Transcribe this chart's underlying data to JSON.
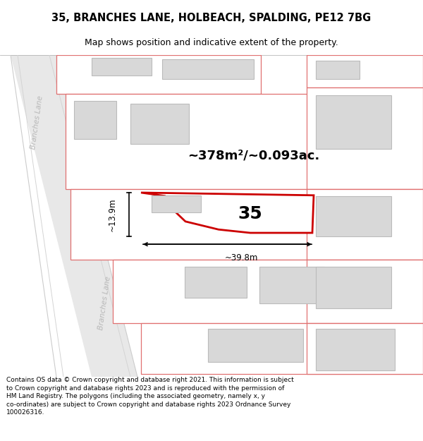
{
  "title": "35, BRANCHES LANE, HOLBEACH, SPALDING, PE12 7BG",
  "subtitle": "Map shows position and indicative extent of the property.",
  "footer": "Contains OS data © Crown copyright and database right 2021. This information is subject to Crown copyright and database rights 2023 and is reproduced with the permission of HM Land Registry. The polygons (including the associated geometry, namely x, y co-ordinates) are subject to Crown copyright and database rights 2023 Ordnance Survey 100026316.",
  "bg_color": "#ffffff",
  "road_fill": "#e8e8e8",
  "road_edge": "#cccccc",
  "plot_edge": "#e07070",
  "building_fill": "#d8d8d8",
  "building_edge": "#bbbbbb",
  "highlight_edge": "#cc0000",
  "area_text": "~378m²/~0.093ac.",
  "number_text": "35",
  "dim_h_text": "~13.9m",
  "dim_w_text": "~39.8m",
  "lane_label": "Branches Lane",
  "title_fontsize": 10.5,
  "subtitle_fontsize": 9,
  "footer_fontsize": 6.5,
  "area_fontsize": 13,
  "number_fontsize": 18,
  "dim_fontsize": 8.5,
  "lane_fontsize": 7.5
}
